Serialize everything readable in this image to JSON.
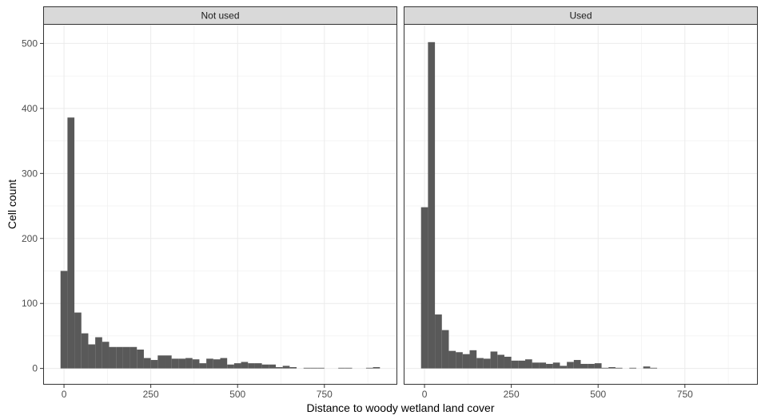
{
  "chart_data": {
    "type": "bar",
    "subtype": "histogram-faceted",
    "xlabel": "Distance to woody wetland land cover",
    "ylabel": "Cell count",
    "x_ticks": [
      0,
      250,
      500,
      750
    ],
    "y_ticks": [
      0,
      100,
      200,
      300,
      400,
      500
    ],
    "xlim": [
      -60,
      960
    ],
    "ylim": [
      -25,
      530
    ],
    "bin_width": 20,
    "grid": true,
    "colors": {
      "bar": "#595959",
      "strip": "#d9d9d9",
      "grid": "#ebebeb",
      "border": "#333333"
    },
    "panels": [
      {
        "label": "Not used",
        "bins_start": [
          -10,
          10,
          30,
          50,
          70,
          90,
          110,
          130,
          150,
          170,
          190,
          210,
          230,
          250,
          270,
          290,
          310,
          330,
          350,
          370,
          390,
          410,
          430,
          450,
          470,
          490,
          510,
          530,
          550,
          570,
          590,
          610,
          630,
          650,
          670,
          690,
          710,
          730,
          750,
          770,
          790,
          810,
          830,
          850,
          870,
          890
        ],
        "values": [
          150,
          386,
          86,
          54,
          37,
          48,
          41,
          33,
          33,
          33,
          33,
          29,
          16,
          13,
          20,
          20,
          15,
          15,
          16,
          14,
          8,
          15,
          14,
          16,
          6,
          8,
          10,
          8,
          8,
          6,
          6,
          2,
          4,
          2,
          0,
          1,
          1,
          1,
          0,
          0,
          1,
          1,
          0,
          0,
          1,
          2
        ]
      },
      {
        "label": "Used",
        "bins_start": [
          -10,
          10,
          30,
          50,
          70,
          90,
          110,
          130,
          150,
          170,
          190,
          210,
          230,
          250,
          270,
          290,
          310,
          330,
          350,
          370,
          390,
          410,
          430,
          450,
          470,
          490,
          510,
          530,
          550,
          570,
          590,
          610,
          630,
          650,
          670,
          690,
          710,
          730,
          750,
          770,
          790,
          810,
          830,
          850,
          870,
          890
        ],
        "values": [
          248,
          502,
          83,
          59,
          27,
          25,
          22,
          28,
          16,
          15,
          26,
          21,
          18,
          12,
          12,
          14,
          9,
          9,
          7,
          9,
          4,
          10,
          13,
          7,
          7,
          8,
          1,
          2,
          1,
          0,
          1,
          0,
          3,
          1,
          0,
          0,
          0,
          0,
          0,
          0,
          0,
          0,
          0,
          0,
          0,
          0
        ]
      }
    ]
  }
}
